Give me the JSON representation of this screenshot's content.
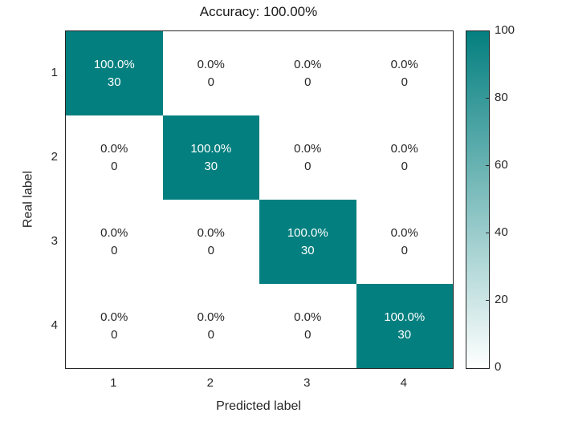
{
  "chart_data": {
    "type": "heatmap",
    "title": "Accuracy: 100.00%",
    "xlabel": "Predicted label",
    "ylabel": "Real label",
    "x_tick_labels": [
      "1",
      "2",
      "3",
      "4"
    ],
    "y_tick_labels": [
      "1",
      "2",
      "3",
      "4"
    ],
    "matrix_counts": [
      [
        30,
        0,
        0,
        0
      ],
      [
        0,
        30,
        0,
        0
      ],
      [
        0,
        0,
        30,
        0
      ],
      [
        0,
        0,
        0,
        30
      ]
    ],
    "matrix_percent_labels": [
      [
        "100.0%",
        "0.0%",
        "0.0%",
        "0.0%"
      ],
      [
        "0.0%",
        "100.0%",
        "0.0%",
        "0.0%"
      ],
      [
        "0.0%",
        "0.0%",
        "100.0%",
        "0.0%"
      ],
      [
        "0.0%",
        "0.0%",
        "0.0%",
        "100.0%"
      ]
    ],
    "colorbar": {
      "min": 0,
      "max": 100,
      "tick_labels": [
        "0",
        "20",
        "40",
        "60",
        "80",
        "100"
      ]
    },
    "colors": {
      "cell_high": "#047f7f",
      "cell_low": "#ffffff",
      "text_on_high": "#ffffff",
      "text_on_low": "#262626",
      "axis": "#262626"
    },
    "legend_position": "right-colorbar",
    "grid": false
  }
}
